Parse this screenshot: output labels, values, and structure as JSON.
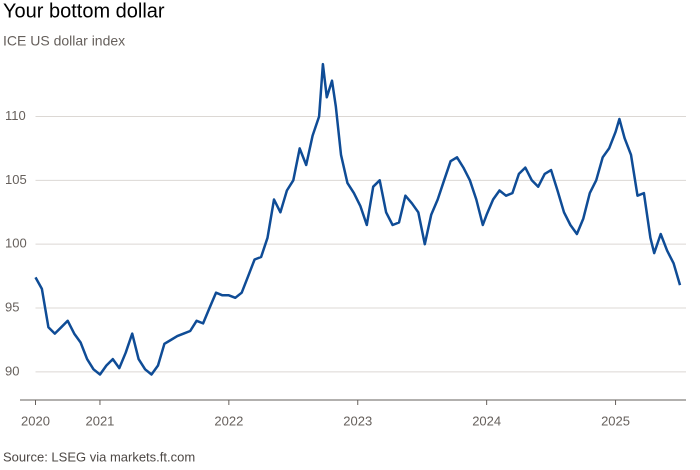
{
  "chart_data": {
    "type": "line",
    "title": "Your bottom dollar",
    "subtitle": "ICE US dollar index",
    "source": "Source: LSEG via markets.ft.com",
    "x": [
      2020.5,
      2020.55,
      2020.6,
      2020.65,
      2020.7,
      2020.75,
      2020.8,
      2020.85,
      2020.9,
      2020.95,
      2021.0,
      2021.05,
      2021.1,
      2021.15,
      2021.2,
      2021.25,
      2021.3,
      2021.35,
      2021.4,
      2021.45,
      2021.5,
      2021.55,
      2021.6,
      2021.65,
      2021.7,
      2021.75,
      2021.8,
      2021.85,
      2021.9,
      2021.95,
      2022.0,
      2022.05,
      2022.1,
      2022.15,
      2022.2,
      2022.25,
      2022.3,
      2022.35,
      2022.4,
      2022.45,
      2022.5,
      2022.55,
      2022.6,
      2022.65,
      2022.7,
      2022.73,
      2022.76,
      2022.8,
      2022.83,
      2022.87,
      2022.92,
      2022.97,
      2023.02,
      2023.07,
      2023.12,
      2023.17,
      2023.22,
      2023.27,
      2023.32,
      2023.37,
      2023.42,
      2023.47,
      2023.52,
      2023.57,
      2023.62,
      2023.67,
      2023.72,
      2023.77,
      2023.82,
      2023.87,
      2023.92,
      2023.97,
      2024.0,
      2024.05,
      2024.1,
      2024.15,
      2024.2,
      2024.25,
      2024.3,
      2024.35,
      2024.4,
      2024.45,
      2024.5,
      2024.55,
      2024.6,
      2024.65,
      2024.7,
      2024.75,
      2024.8,
      2024.85,
      2024.9,
      2024.95,
      2025.0,
      2025.03,
      2025.07,
      2025.12,
      2025.17,
      2025.22,
      2025.27,
      2025.3,
      2025.35,
      2025.4,
      2025.45,
      2025.5
    ],
    "series": [
      {
        "name": "ICE US dollar index",
        "color": "#0f4c96",
        "values": [
          97.4,
          96.5,
          93.5,
          93.0,
          93.5,
          94.0,
          93.0,
          92.3,
          91.0,
          90.2,
          89.8,
          90.5,
          91.0,
          90.3,
          91.5,
          93.0,
          91.0,
          90.2,
          89.8,
          90.5,
          92.2,
          92.5,
          92.8,
          93.0,
          93.2,
          94.0,
          93.8,
          95.0,
          96.2,
          96.0,
          96.0,
          95.8,
          96.2,
          97.5,
          98.8,
          99.0,
          100.5,
          103.5,
          102.5,
          104.2,
          105.0,
          107.5,
          106.2,
          108.5,
          110.0,
          114.1,
          111.5,
          112.8,
          110.8,
          107.0,
          104.8,
          104.0,
          103.0,
          101.5,
          104.5,
          105.0,
          102.5,
          101.5,
          101.7,
          103.8,
          103.2,
          102.5,
          100.0,
          102.3,
          103.5,
          105.0,
          106.5,
          106.8,
          106.0,
          105.0,
          103.5,
          101.5,
          102.3,
          103.5,
          104.2,
          103.8,
          104.0,
          105.5,
          106.0,
          105.0,
          104.5,
          105.5,
          105.8,
          104.2,
          102.5,
          101.5,
          100.8,
          102.0,
          104.0,
          105.0,
          106.8,
          107.5,
          108.8,
          109.8,
          108.3,
          107.0,
          103.8,
          104.0,
          100.5,
          99.3,
          100.8,
          99.5,
          98.5,
          96.8
        ]
      }
    ],
    "xlim": [
      2020.5,
      2025.5
    ],
    "xticks": [
      {
        "value": 2020.5,
        "label": "2020"
      },
      2021,
      2022,
      2023,
      2024,
      2025
    ],
    "ylim": [
      87.8,
      114.5
    ],
    "yticks": [
      90,
      95,
      100,
      105,
      110
    ],
    "grid": true
  }
}
